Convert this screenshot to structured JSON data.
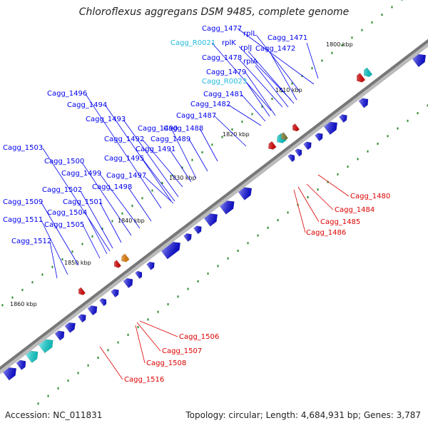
{
  "title": "Chloroflexus aggregans DSM 9485, complete genome",
  "footer": {
    "accession": "Accession: NC_011831",
    "summary": "Topology: circular; Length: 4,684,931 bp; Genes: 3,787"
  },
  "colors": {
    "forward_gene": "#0000ee",
    "reverse_gene": "#ee0000",
    "rna_label": "#22bbdd",
    "backbone": "#888888",
    "tick_dot": "#2a8a2a"
  },
  "ticks": [
    "1800 kbp",
    "1810 kbp",
    "1820 kbp",
    "1830 kbp",
    "1840 kbp",
    "1850 kbp",
    "1860 kbp"
  ],
  "labels": {
    "forward": [
      "Cagg_1477",
      "rplL",
      "Cagg_1471",
      "Cagg_R0021",
      "rplK",
      "rplJ",
      "Cagg_1472",
      "Cagg_1478",
      "rplA",
      "Cagg_1479",
      "Cagg_R0023",
      "Cagg_1481",
      "Cagg_1482",
      "Cagg_1487",
      "Cagg_1488",
      "Cagg_1489",
      "Cagg_1490",
      "Cagg_1491",
      "Cagg_1492",
      "Cagg_1493",
      "Cagg_1494",
      "Cagg_1495",
      "Cagg_1496",
      "Cagg_1497",
      "Cagg_1498",
      "Cagg_1499",
      "Cagg_1500",
      "Cagg_1501",
      "Cagg_1502",
      "Cagg_1503",
      "Cagg_1504",
      "Cagg_1505",
      "Cagg_1509",
      "Cagg_1511",
      "Cagg_1512"
    ],
    "reverse": [
      "Cagg_1480",
      "Cagg_1484",
      "Cagg_1485",
      "Cagg_1486",
      "Cagg_1506",
      "Cagg_1507",
      "Cagg_1508",
      "Cagg_1516"
    ]
  }
}
